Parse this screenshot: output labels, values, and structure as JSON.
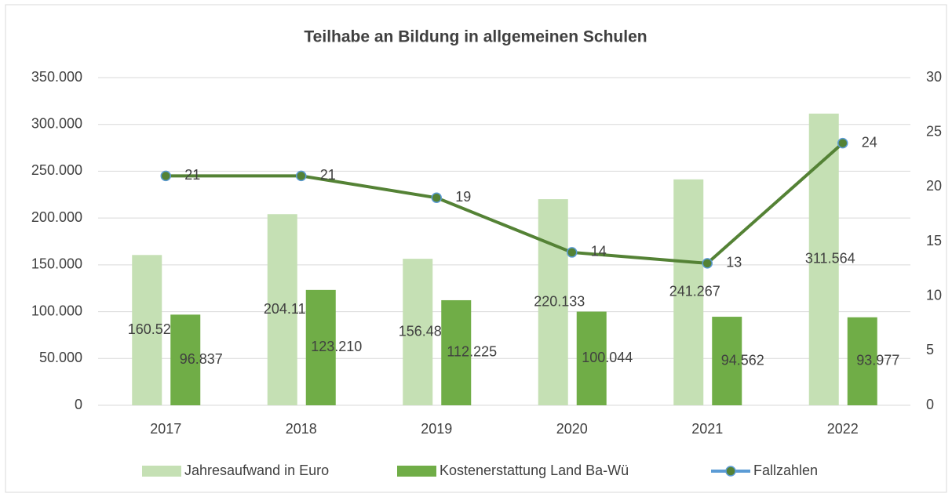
{
  "chart_data": {
    "type": "bar_line",
    "title": "Teilhabe an Bildung in allgemeinen Schulen",
    "categories": [
      "2017",
      "2018",
      "2019",
      "2020",
      "2021",
      "2022"
    ],
    "series": [
      {
        "name": "Jahresaufwand in Euro",
        "color": "#c5e0b4",
        "type": "bar",
        "values": [
          160521,
          204115,
          156486,
          220133,
          241267,
          311564
        ],
        "value_labels": [
          "160.521",
          "204.115",
          "156.486",
          "220.133",
          "241.267",
          "311.564"
        ]
      },
      {
        "name": "Kostenerstattung Land Ba-Wü",
        "color": "#70ad47",
        "type": "bar",
        "values": [
          96837,
          123210,
          112225,
          100044,
          94562,
          93977
        ],
        "value_labels": [
          "96.837",
          "123.210",
          "112.225",
          "100.044",
          "94.562",
          "93.977"
        ]
      },
      {
        "name": "Fallzahlen",
        "color": "#548235",
        "marker_edge_color": "#5b9bd5",
        "type": "line",
        "axis": "y2",
        "values": [
          21,
          21,
          19,
          14,
          13,
          24
        ]
      }
    ],
    "ylim": [
      0,
      350000
    ],
    "yticks": [
      0,
      {
        "value": 50000,
        "label": "50.000"
      },
      {
        "value": 100000,
        "label": "100.000"
      },
      {
        "value": 150000,
        "label": "150.000"
      },
      {
        "value": 200000,
        "label": "200.000"
      },
      {
        "value": 250000,
        "label": "250.000"
      },
      {
        "value": 300000,
        "label": "300.000"
      },
      {
        "value": 350000,
        "label": "350.000"
      }
    ],
    "y2lim": [
      0,
      30
    ],
    "y2ticks": [
      0,
      5,
      10,
      15,
      20,
      25,
      30
    ],
    "grid": true,
    "legend": "bottom"
  }
}
